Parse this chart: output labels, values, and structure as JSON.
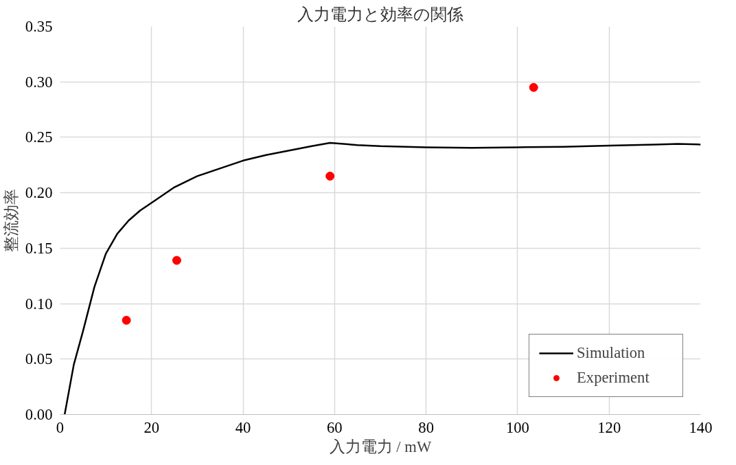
{
  "chart_data": {
    "type": "line",
    "title": "入力電力と効率の関係",
    "xlabel": "入力電力 / mW",
    "ylabel": "整流効率",
    "xlim": [
      0,
      140
    ],
    "xticks": [
      0,
      20,
      40,
      60,
      80,
      100,
      120,
      140
    ],
    "ylim": [
      0,
      0.35
    ],
    "yticks": [
      {
        "value": 0,
        "label": "0.00"
      },
      {
        "value": 0.05,
        "label": "0.05"
      },
      {
        "value": 0.1,
        "label": "0.10"
      },
      {
        "value": 0.15,
        "label": "0.15"
      },
      {
        "value": 0.2,
        "label": "0.20"
      },
      {
        "value": 0.25,
        "label": "0.25"
      },
      {
        "value": 0.3,
        "label": "0.30"
      },
      {
        "value": 0.35,
        "label": "0.35"
      }
    ],
    "grid": true,
    "legend": "bottom right",
    "series": [
      {
        "name": "Simulation",
        "color": "#000000",
        "marker": "none",
        "line_style": "solid",
        "x": [
          1,
          3,
          5,
          7.5,
          10,
          12.5,
          15,
          17.5,
          20,
          25,
          30,
          35,
          40,
          45,
          50,
          55,
          59,
          65,
          70,
          80,
          90,
          100,
          110,
          120,
          130,
          135,
          140
        ],
        "values": [
          0.0,
          0.045,
          0.075,
          0.115,
          0.145,
          0.163,
          0.175,
          0.184,
          0.191,
          0.205,
          0.215,
          0.222,
          0.229,
          0.234,
          0.238,
          0.242,
          0.245,
          0.243,
          0.242,
          0.241,
          0.2405,
          0.241,
          0.2415,
          0.2425,
          0.2435,
          0.244,
          0.2435
        ]
      },
      {
        "name": "Experiment",
        "type": "scatter",
        "color": "#ff0000",
        "marker": "circle",
        "x": [
          14.5,
          25.5,
          59,
          103.5
        ],
        "values": [
          0.085,
          0.139,
          0.215,
          0.295
        ]
      }
    ]
  }
}
